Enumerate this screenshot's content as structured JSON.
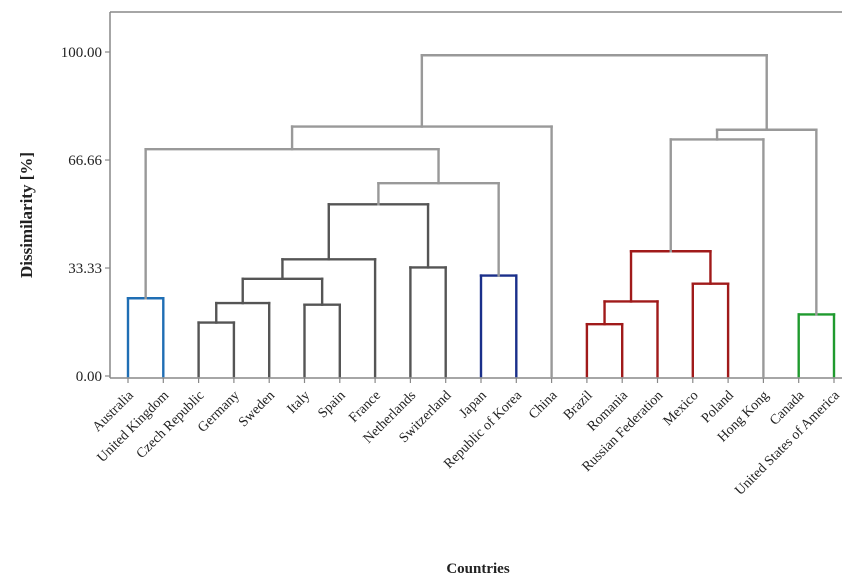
{
  "chart_data": {
    "type": "dendrogram",
    "ylabel": "Dissimilarity [%]",
    "xlabel": "Countries",
    "ylim": [
      0,
      100
    ],
    "yticks": [
      "0.00",
      "33.33",
      "66.66",
      "100.00"
    ],
    "ytick_values": [
      0,
      33.33,
      66.66,
      100
    ],
    "leaves": [
      "Australia",
      "United Kingdom",
      "Czech Republic",
      "Germany",
      "Sweden",
      "Italy",
      "Spain",
      "France",
      "Netherlands",
      "Switzerland",
      "Japan",
      "Republic of Korea",
      "China",
      "Brazil",
      "Romania",
      "Russian Federation",
      "Mexico",
      "Poland",
      "Hong Kong",
      "Canada",
      "United States of America"
    ],
    "leaf_colors": [
      "#1f6eb4",
      "#1f6eb4",
      "#555555",
      "#555555",
      "#555555",
      "#555555",
      "#555555",
      "#555555",
      "#555555",
      "#555555",
      "#1a2f8a",
      "#1a2f8a",
      "#a020c0",
      "#a01a1a",
      "#a01a1a",
      "#a01a1a",
      "#a01a1a",
      "#a01a1a",
      "#e6a020",
      "#1f9a2e",
      "#1f9a2e"
    ],
    "merges": [
      {
        "a": "L3",
        "b": "L4",
        "h": 16.5,
        "color": "#555555"
      },
      {
        "a": "L6",
        "b": "L7",
        "h": 22.0,
        "color": "#555555"
      },
      {
        "a": "M0",
        "b": "L5",
        "h": 22.5,
        "color": "#555555"
      },
      {
        "a": "L1",
        "b": "L2",
        "h": 24.0,
        "color": "#1f6eb4"
      },
      {
        "a": "M2",
        "b": "M1",
        "h": 30.0,
        "color": "#555555"
      },
      {
        "a": "M4",
        "b": "L8",
        "h": 36.0,
        "color": "#555555"
      },
      {
        "a": "L9",
        "b": "L10",
        "h": 33.5,
        "color": "#555555"
      },
      {
        "a": "M5",
        "b": "M6",
        "h": 53.0,
        "color": "#555555"
      },
      {
        "a": "L11",
        "b": "L12",
        "h": 31.0,
        "color": "#1a2f8a"
      },
      {
        "a": "M7",
        "b": "M8",
        "h": 59.5,
        "color": "#999999"
      },
      {
        "a": "M3",
        "b": "M9",
        "h": 70.0,
        "color": "#999999"
      },
      {
        "a": "M10",
        "b": "L13",
        "h": 77.0,
        "color": "#999999"
      },
      {
        "a": "L14",
        "b": "L15",
        "h": 16.0,
        "color": "#a01a1a"
      },
      {
        "a": "M12",
        "b": "L16",
        "h": 23.0,
        "color": "#a01a1a"
      },
      {
        "a": "L17",
        "b": "L18",
        "h": 28.5,
        "color": "#a01a1a"
      },
      {
        "a": "M13",
        "b": "M14",
        "h": 38.5,
        "color": "#a01a1a"
      },
      {
        "a": "L20",
        "b": "L21",
        "h": 19.0,
        "color": "#1f9a2e"
      },
      {
        "a": "M15",
        "b": "L19",
        "h": 73.0,
        "color": "#999999"
      },
      {
        "a": "M16",
        "b": "M17",
        "h": 76.0,
        "color": "#999999"
      },
      {
        "a": "M11",
        "b": "M18",
        "h": 99.0,
        "color": "#999999"
      }
    ],
    "colors": {
      "axis": "#888888",
      "upper_links": "#999999"
    }
  }
}
